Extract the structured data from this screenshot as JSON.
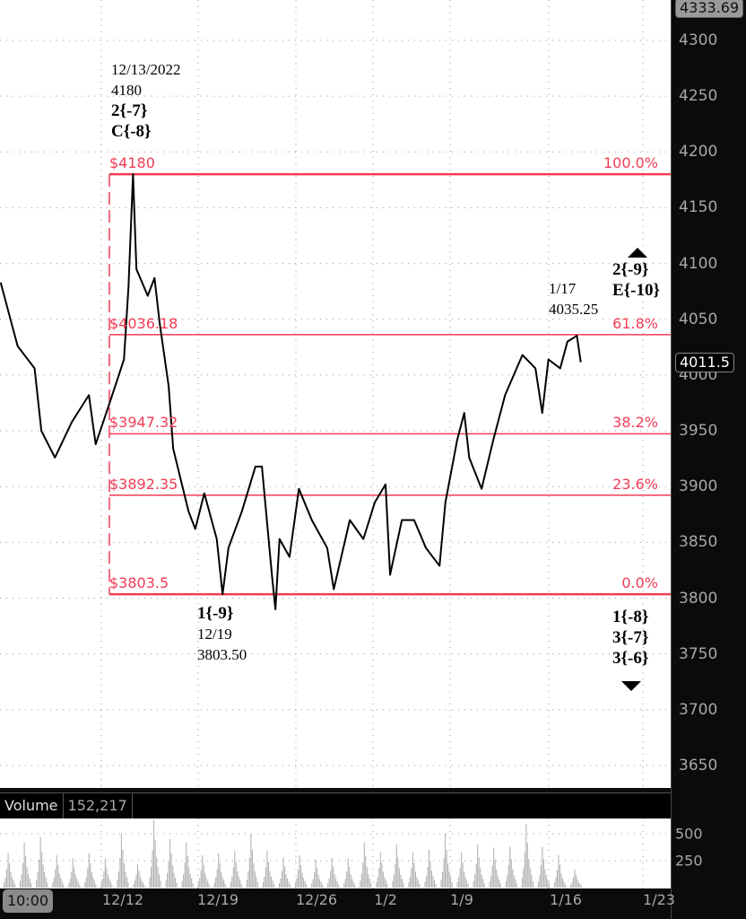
{
  "chart_data": {
    "type": "line",
    "title": "",
    "price_axis": {
      "ticks": [
        4300,
        4250,
        4200,
        4150,
        4100,
        4050,
        4000,
        3950,
        3900,
        3850,
        3800,
        3750,
        3700,
        3650
      ],
      "range": [
        3620,
        4336
      ]
    },
    "date_axis": {
      "ticks": [
        "12/12",
        "12/19",
        "12/26",
        "1/2",
        "1/9",
        "1/16",
        "1/23"
      ]
    },
    "grid": true,
    "price_badges": {
      "top": "4333.69",
      "last": "4011.5"
    },
    "line_color": "#000000",
    "fib_color": "#f03c55",
    "price_series": [
      [
        "12/03 00:00",
        4083
      ],
      [
        "12/04 06:00",
        4026
      ],
      [
        "12/05 12:00",
        4006
      ],
      [
        "12/06 00:00",
        3950
      ],
      [
        "12/07 00:00",
        3926
      ],
      [
        "12/08 06:00",
        3958
      ],
      [
        "12/09 12:00",
        3982
      ],
      [
        "12/10 00:00",
        3938
      ],
      [
        "12/11 00:00",
        3974
      ],
      [
        "12/12 02:00",
        4014
      ],
      [
        "12/12 10:00",
        4079
      ],
      [
        "12/12 18:00",
        4180
      ],
      [
        "12/13 00:00",
        4095
      ],
      [
        "12/13 20:00",
        4071
      ],
      [
        "12/14 08:00",
        4087
      ],
      [
        "12/14 17:00",
        4047
      ],
      [
        "12/15 09:00",
        3990
      ],
      [
        "12/15 17:00",
        3934
      ],
      [
        "12/16 20:00",
        3878
      ],
      [
        "12/17 08:00",
        3862
      ],
      [
        "12/18 00:00",
        3894
      ],
      [
        "12/18 22:00",
        3853
      ],
      [
        "12/19 08:00",
        3803.5
      ],
      [
        "12/19 18:00",
        3845
      ],
      [
        "12/20 17:00",
        3878
      ],
      [
        "12/21 16:00",
        3918
      ],
      [
        "12/22 03:00",
        3918
      ],
      [
        "12/22 20:00",
        3821
      ],
      [
        "12/23 02:00",
        3790
      ],
      [
        "12/23 09:00",
        3853
      ],
      [
        "12/24 02:00",
        3837
      ],
      [
        "12/24 18:00",
        3898
      ],
      [
        "12/25 16:00",
        3870
      ],
      [
        "12/27 02:00",
        3845
      ],
      [
        "12/27 18:00",
        3808
      ],
      [
        "12/29 09:00",
        3870
      ],
      [
        "12/30 18:00",
        3853
      ],
      [
        "12/31 22:00",
        3886
      ],
      [
        "01/02 00:00",
        3902
      ],
      [
        "01/02 10:00",
        3821
      ],
      [
        "01/03 12:00",
        3870
      ],
      [
        "01/04 15:00",
        3870
      ],
      [
        "01/05 17:00",
        3845
      ],
      [
        "01/06 23:00",
        3829
      ],
      [
        "01/07 12:00",
        3886
      ],
      [
        "01/08 14:00",
        3942
      ],
      [
        "01/09 04:00",
        3966
      ],
      [
        "01/09 12:00",
        3926
      ],
      [
        "01/10 08:00",
        3898
      ],
      [
        "01/11 03:00",
        3942
      ],
      [
        "01/11 22:00",
        3982
      ],
      [
        "01/13 02:00",
        4018
      ],
      [
        "01/13 23:00",
        4006
      ],
      [
        "01/14 10:00",
        3966
      ],
      [
        "01/14 20:00",
        4014
      ],
      [
        "01/15 15:00",
        4006
      ],
      [
        "01/16 03:00",
        4030
      ],
      [
        "01/16 20:00",
        4035.25
      ],
      [
        "01/17 03:00",
        4011.5
      ]
    ],
    "fib_levels": [
      {
        "price": 4180,
        "label": "$4180",
        "pct": "100.0%"
      },
      {
        "price": 4036.18,
        "label": "$4036.18",
        "pct": "61.8%"
      },
      {
        "price": 3947.32,
        "label": "$3947.32",
        "pct": "38.2%"
      },
      {
        "price": 3892.35,
        "label": "$3892.35",
        "pct": "23.6%"
      },
      {
        "price": 3803.5,
        "label": "$3803.5",
        "pct": "0.0%"
      }
    ],
    "volume": {
      "label": "Volume",
      "value": "152,217",
      "ticks": [
        "500",
        "250"
      ],
      "range": [
        0,
        640
      ],
      "color": "#b4b4b4",
      "session_peaks": [
        320,
        420,
        470,
        300,
        270,
        320,
        270,
        500,
        220,
        630,
        450,
        420,
        300,
        320,
        340,
        500,
        340,
        280,
        300,
        260,
        280,
        270,
        420,
        330,
        400,
        330,
        350,
        500,
        330,
        400,
        370,
        380,
        590,
        380,
        300,
        170
      ]
    }
  },
  "annotations": {
    "high": {
      "date": "12/13/2022",
      "price": "4180",
      "wave1": "2{-7}",
      "wave2": "C{-8}"
    },
    "low": {
      "wave": "1{-9}",
      "date": "12/19",
      "price": "3803.50"
    },
    "recent": {
      "date": "1/17",
      "price": "4035.25"
    },
    "up_targets": {
      "wave1": "2{-9}",
      "wave2": "E{-10}"
    },
    "down_targets": {
      "wave1": "1{-8}",
      "wave2": "3{-7}",
      "wave3": "3{-6}"
    }
  },
  "footer": {
    "time_button": "10:00"
  }
}
